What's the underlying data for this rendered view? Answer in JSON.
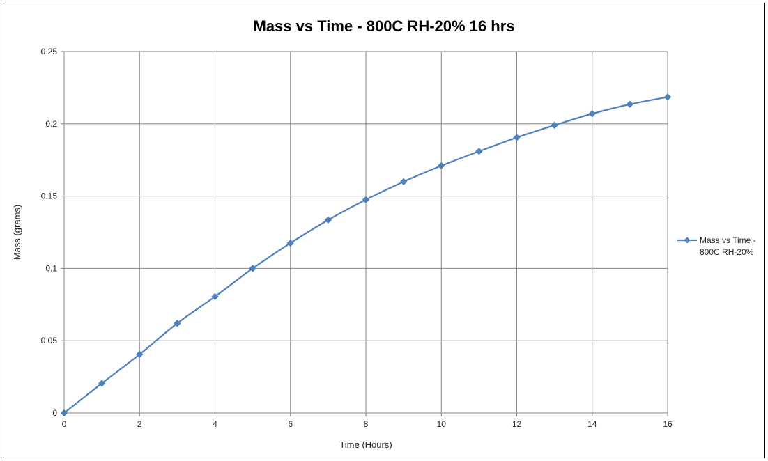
{
  "chart_data": {
    "type": "line",
    "title": "Mass vs Time - 800C RH-20% 16 hrs",
    "xlabel": "Time (Hours)",
    "ylabel": "Mass (grams)",
    "xlim": [
      0,
      16
    ],
    "ylim": [
      0,
      0.25
    ],
    "xticks": [
      "0",
      "2",
      "4",
      "6",
      "8",
      "10",
      "12",
      "14",
      "16"
    ],
    "yticks": [
      "0",
      "0.05",
      "0.1",
      "0.15",
      "0.2",
      "0.25"
    ],
    "grid": true,
    "legend_position": "right",
    "series": [
      {
        "name": "Mass vs Time - 800C RH-20%",
        "legend_lines": [
          "Mass vs Time -",
          "800C RH-20%"
        ],
        "color": "#4f81bd",
        "marker": "diamond",
        "x": [
          0,
          1,
          2,
          3,
          4,
          5,
          6,
          7,
          8,
          9,
          10,
          11,
          12,
          13,
          14,
          15,
          16
        ],
        "y": [
          0,
          0.0205,
          0.0405,
          0.062,
          0.0805,
          0.1,
          0.1175,
          0.1335,
          0.1475,
          0.16,
          0.171,
          0.181,
          0.1905,
          0.199,
          0.207,
          0.2135,
          0.2185
        ]
      }
    ]
  }
}
